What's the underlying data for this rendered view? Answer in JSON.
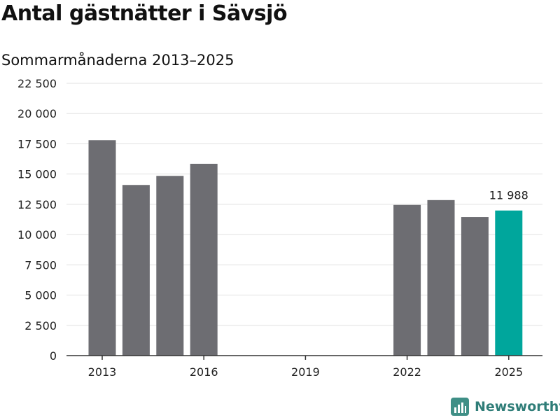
{
  "title": "Antal gästnätter i Sävsjö",
  "subtitle": "Sommarmånaderna 2013–2025",
  "brand": {
    "name": "Newsworthy",
    "icon": "bar-chart-logo-icon",
    "color": "#3f8f86"
  },
  "colors": {
    "bar": "#6d6d72",
    "highlight": "#00a69c",
    "grid": "#e1e1e1",
    "axis": "#333333"
  },
  "chart_data": {
    "type": "bar",
    "x": [
      2013,
      2014,
      2015,
      2016,
      2017,
      2018,
      2019,
      2020,
      2021,
      2022,
      2023,
      2024,
      2025
    ],
    "values": [
      17800,
      14100,
      14850,
      15850,
      null,
      null,
      null,
      null,
      null,
      12450,
      12850,
      11450,
      11988
    ],
    "highlight_index": 12,
    "data_labels": [
      {
        "index": 12,
        "text": "11 988"
      }
    ],
    "x_ticks": [
      2013,
      2016,
      2019,
      2022,
      2025
    ],
    "y_ticks": [
      0,
      2500,
      5000,
      7500,
      10000,
      12500,
      15000,
      17500,
      20000,
      22500
    ],
    "y_tick_labels": [
      "0",
      "2 500",
      "5 000",
      "7 500",
      "10 000",
      "12 500",
      "15 000",
      "17 500",
      "20 000",
      "22 500"
    ],
    "ylim": [
      0,
      22500
    ],
    "grid": true
  }
}
